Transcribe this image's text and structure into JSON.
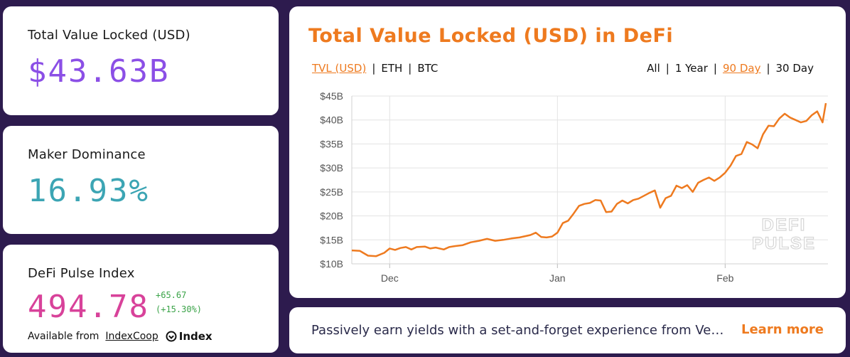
{
  "cards": {
    "tvl": {
      "label": "Total Value Locked (USD)",
      "value": "$43.63B",
      "color": "#8b4fe6"
    },
    "maker": {
      "label": "Maker Dominance",
      "value": "16.93%",
      "color": "#3ca5b4"
    },
    "index": {
      "label": "DeFi Pulse Index",
      "value": "494.78",
      "color": "#d8429a",
      "change_abs": "+65.67",
      "change_pct": "(+15.30%)",
      "available_text": "Available from",
      "available_link": "IndexCoop",
      "logo_text": "Index"
    }
  },
  "chart_panel": {
    "title": "Total Value Locked (USD) in DeFi",
    "units": [
      {
        "label": "TVL (USD)",
        "active": true
      },
      {
        "label": "ETH",
        "active": false
      },
      {
        "label": "BTC",
        "active": false
      }
    ],
    "ranges": [
      {
        "label": "All",
        "active": false
      },
      {
        "label": "1 Year",
        "active": false
      },
      {
        "label": "90 Day",
        "active": true
      },
      {
        "label": "30 Day",
        "active": false
      }
    ],
    "watermark": [
      "DEFI",
      "PULSE"
    ],
    "accent": "#ee7a1f"
  },
  "chart_data": {
    "type": "line",
    "title": "Total Value Locked (USD) in DeFi",
    "xlabel": "",
    "ylabel": "",
    "x_ticks": [
      {
        "label": "Dec",
        "day": 7
      },
      {
        "label": "Jan",
        "day": 38
      },
      {
        "label": "Feb",
        "day": 69
      }
    ],
    "y_ticks": [
      "$10B",
      "$15B",
      "$20B",
      "$25B",
      "$30B",
      "$35B",
      "$40B",
      "$45B"
    ],
    "ylim": [
      10,
      45
    ],
    "xlim": [
      0,
      88
    ],
    "grid": true,
    "series": [
      {
        "color": "#ee7a1f",
        "points": [
          [
            0,
            12.8
          ],
          [
            1.5,
            12.7
          ],
          [
            3,
            11.7
          ],
          [
            4.5,
            11.6
          ],
          [
            6,
            12.3
          ],
          [
            7,
            13.2
          ],
          [
            8,
            12.9
          ],
          [
            9,
            13.3
          ],
          [
            10,
            13.5
          ],
          [
            11,
            13.0
          ],
          [
            12,
            13.5
          ],
          [
            13.5,
            13.6
          ],
          [
            14.5,
            13.2
          ],
          [
            15.5,
            13.4
          ],
          [
            17,
            13.0
          ],
          [
            18,
            13.5
          ],
          [
            19,
            13.7
          ],
          [
            20.5,
            13.9
          ],
          [
            22,
            14.5
          ],
          [
            23.5,
            14.8
          ],
          [
            25,
            15.2
          ],
          [
            26.5,
            14.8
          ],
          [
            28,
            15.0
          ],
          [
            29.5,
            15.3
          ],
          [
            31,
            15.5
          ],
          [
            33,
            16.0
          ],
          [
            34,
            16.5
          ],
          [
            35,
            15.6
          ],
          [
            36,
            15.5
          ],
          [
            37,
            15.7
          ],
          [
            38,
            16.5
          ],
          [
            39,
            18.5
          ],
          [
            40,
            19.0
          ],
          [
            41,
            20.5
          ],
          [
            42,
            22.1
          ],
          [
            43,
            22.5
          ],
          [
            44,
            22.7
          ],
          [
            45,
            23.3
          ],
          [
            46,
            23.2
          ],
          [
            47,
            20.8
          ],
          [
            48,
            20.9
          ],
          [
            49,
            22.5
          ],
          [
            50,
            23.2
          ],
          [
            51,
            22.6
          ],
          [
            52,
            23.3
          ],
          [
            53,
            23.6
          ],
          [
            54,
            24.2
          ],
          [
            55,
            24.8
          ],
          [
            56,
            25.3
          ],
          [
            57,
            21.7
          ],
          [
            58,
            23.7
          ],
          [
            59,
            24.2
          ],
          [
            60,
            26.3
          ],
          [
            61,
            25.8
          ],
          [
            62,
            26.4
          ],
          [
            63,
            25.0
          ],
          [
            64,
            26.9
          ],
          [
            65,
            27.5
          ],
          [
            66,
            28.0
          ],
          [
            67,
            27.3
          ],
          [
            68,
            28.0
          ],
          [
            69,
            29.0
          ],
          [
            70,
            30.5
          ],
          [
            71,
            32.5
          ],
          [
            72,
            32.9
          ],
          [
            73,
            35.4
          ],
          [
            74,
            34.9
          ],
          [
            75,
            34.1
          ],
          [
            76,
            37.0
          ],
          [
            77,
            38.8
          ],
          [
            78,
            38.7
          ],
          [
            79,
            40.3
          ],
          [
            80,
            41.3
          ],
          [
            81,
            40.5
          ],
          [
            82,
            40.0
          ],
          [
            83,
            39.5
          ],
          [
            84,
            39.8
          ],
          [
            85,
            41.0
          ],
          [
            86,
            41.8
          ],
          [
            87,
            39.5
          ],
          [
            87.6,
            43.5
          ]
        ]
      }
    ]
  },
  "promo": {
    "text": "Passively earn yields with a set-and-forget experience from Ve…",
    "link": "Learn more"
  }
}
